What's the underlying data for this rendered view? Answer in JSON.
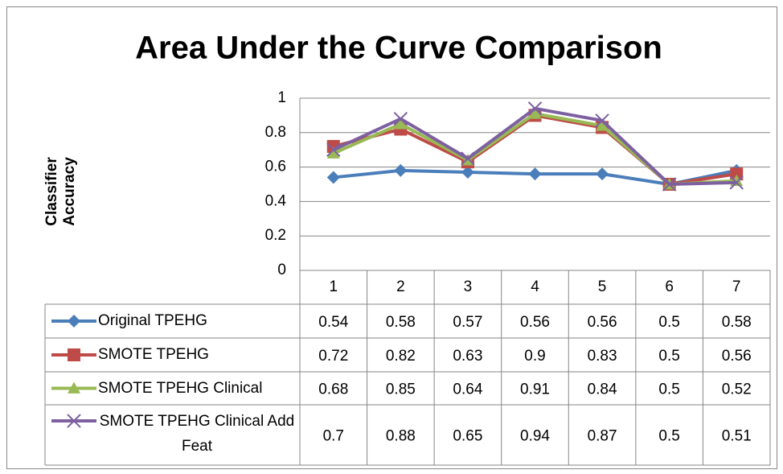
{
  "chart_data": {
    "type": "line",
    "title": "Area Under the Curve Comparison",
    "y_label": "Classifier Accuracy",
    "categories": [
      "1",
      "2",
      "3",
      "4",
      "5",
      "6",
      "7"
    ],
    "series": [
      {
        "name": "Original TPEHG",
        "color": "#4a7ebb",
        "marker": "diamond",
        "values": [
          0.54,
          0.58,
          0.57,
          0.56,
          0.56,
          0.5,
          0.58
        ]
      },
      {
        "name": "SMOTE TPEHG",
        "color": "#be4b48",
        "marker": "square",
        "values": [
          0.72,
          0.82,
          0.63,
          0.9,
          0.83,
          0.5,
          0.56
        ]
      },
      {
        "name": "SMOTE TPEHG Clinical",
        "color": "#98b954",
        "marker": "triangle",
        "values": [
          0.68,
          0.85,
          0.64,
          0.91,
          0.84,
          0.5,
          0.52
        ]
      },
      {
        "name": "SMOTE TPEHG Clinical Add Feat",
        "color": "#7d60a0",
        "marker": "x",
        "values": [
          0.7,
          0.88,
          0.65,
          0.94,
          0.87,
          0.5,
          0.51
        ]
      }
    ],
    "ylim": [
      0,
      1
    ],
    "yticks": [
      0,
      0.2,
      0.4,
      0.6,
      0.8,
      1
    ],
    "grid": true
  }
}
